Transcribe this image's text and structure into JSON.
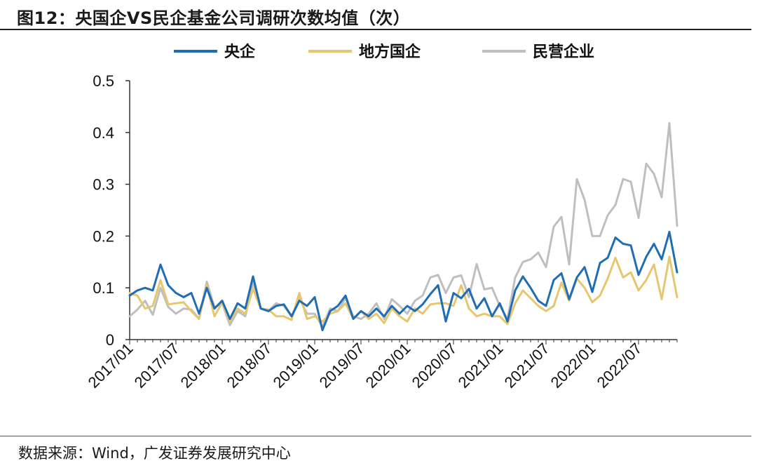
{
  "title": "图12：央国企VS民企基金公司调研次数均值（次）",
  "source": "数据来源：Wind，广发证券发展研究中心",
  "chart_data": {
    "type": "line",
    "title": "图12：央国企VS民企基金公司调研次数均值（次）",
    "xlabel": "",
    "ylabel": "",
    "ylim": [
      0,
      0.5
    ],
    "yticks": [
      "0",
      "0.1",
      "0.2",
      "0.3",
      "0.4",
      "0.5"
    ],
    "xtick_labels": [
      "2017/01",
      "2017/07",
      "2018/01",
      "2018/07",
      "2019/01",
      "2019/07",
      "2020/01",
      "2020/07",
      "2021/01",
      "2021/07",
      "2022/01",
      "2022/07"
    ],
    "x_start": "2017/01",
    "x_end": "2022/12",
    "grid": false,
    "legend_position": "top",
    "series": [
      {
        "name": "央企",
        "color": "#1f6eb5",
        "values": [
          0.085,
          0.095,
          0.1,
          0.095,
          0.145,
          0.105,
          0.09,
          0.082,
          0.09,
          0.05,
          0.1,
          0.06,
          0.075,
          0.04,
          0.07,
          0.06,
          0.122,
          0.06,
          0.055,
          0.065,
          0.068,
          0.045,
          0.075,
          0.065,
          0.082,
          0.018,
          0.055,
          0.065,
          0.085,
          0.04,
          0.055,
          0.045,
          0.06,
          0.045,
          0.065,
          0.05,
          0.065,
          0.055,
          0.068,
          0.088,
          0.105,
          0.035,
          0.09,
          0.08,
          0.098,
          0.06,
          0.08,
          0.045,
          0.07,
          0.035,
          0.095,
          0.122,
          0.1,
          0.075,
          0.065,
          0.115,
          0.128,
          0.078,
          0.12,
          0.14,
          0.092,
          0.148,
          0.158,
          0.197,
          0.185,
          0.182,
          0.125,
          0.16,
          0.185,
          0.155,
          0.208,
          0.13
        ]
      },
      {
        "name": "地方国企",
        "color": "#e6c66e",
        "values": [
          0.09,
          0.085,
          0.06,
          0.065,
          0.115,
          0.068,
          0.07,
          0.072,
          0.055,
          0.04,
          0.105,
          0.045,
          0.072,
          0.035,
          0.06,
          0.05,
          0.098,
          0.06,
          0.058,
          0.045,
          0.045,
          0.038,
          0.09,
          0.04,
          0.045,
          0.035,
          0.05,
          0.055,
          0.07,
          0.04,
          0.055,
          0.04,
          0.05,
          0.032,
          0.06,
          0.045,
          0.035,
          0.06,
          0.05,
          0.068,
          0.07,
          0.07,
          0.065,
          0.105,
          0.06,
          0.045,
          0.05,
          0.045,
          0.045,
          0.03,
          0.07,
          0.095,
          0.08,
          0.065,
          0.055,
          0.065,
          0.11,
          0.075,
          0.118,
          0.1,
          0.072,
          0.085,
          0.118,
          0.158,
          0.12,
          0.13,
          0.095,
          0.115,
          0.145,
          0.078,
          0.16,
          0.082
        ]
      },
      {
        "name": "民营企业",
        "color": "#bfbfbf",
        "values": [
          0.045,
          0.058,
          0.075,
          0.048,
          0.1,
          0.063,
          0.05,
          0.06,
          0.058,
          0.04,
          0.112,
          0.062,
          0.07,
          0.028,
          0.055,
          0.045,
          0.11,
          0.06,
          0.055,
          0.07,
          0.065,
          0.045,
          0.08,
          0.05,
          0.05,
          0.025,
          0.06,
          0.055,
          0.08,
          0.045,
          0.04,
          0.05,
          0.07,
          0.04,
          0.078,
          0.065,
          0.05,
          0.075,
          0.085,
          0.12,
          0.125,
          0.09,
          0.12,
          0.124,
          0.082,
          0.146,
          0.097,
          0.1,
          0.065,
          0.04,
          0.12,
          0.15,
          0.155,
          0.168,
          0.14,
          0.218,
          0.237,
          0.145,
          0.31,
          0.27,
          0.2,
          0.2,
          0.24,
          0.26,
          0.31,
          0.305,
          0.235,
          0.34,
          0.32,
          0.275,
          0.418,
          0.22
        ]
      }
    ]
  }
}
